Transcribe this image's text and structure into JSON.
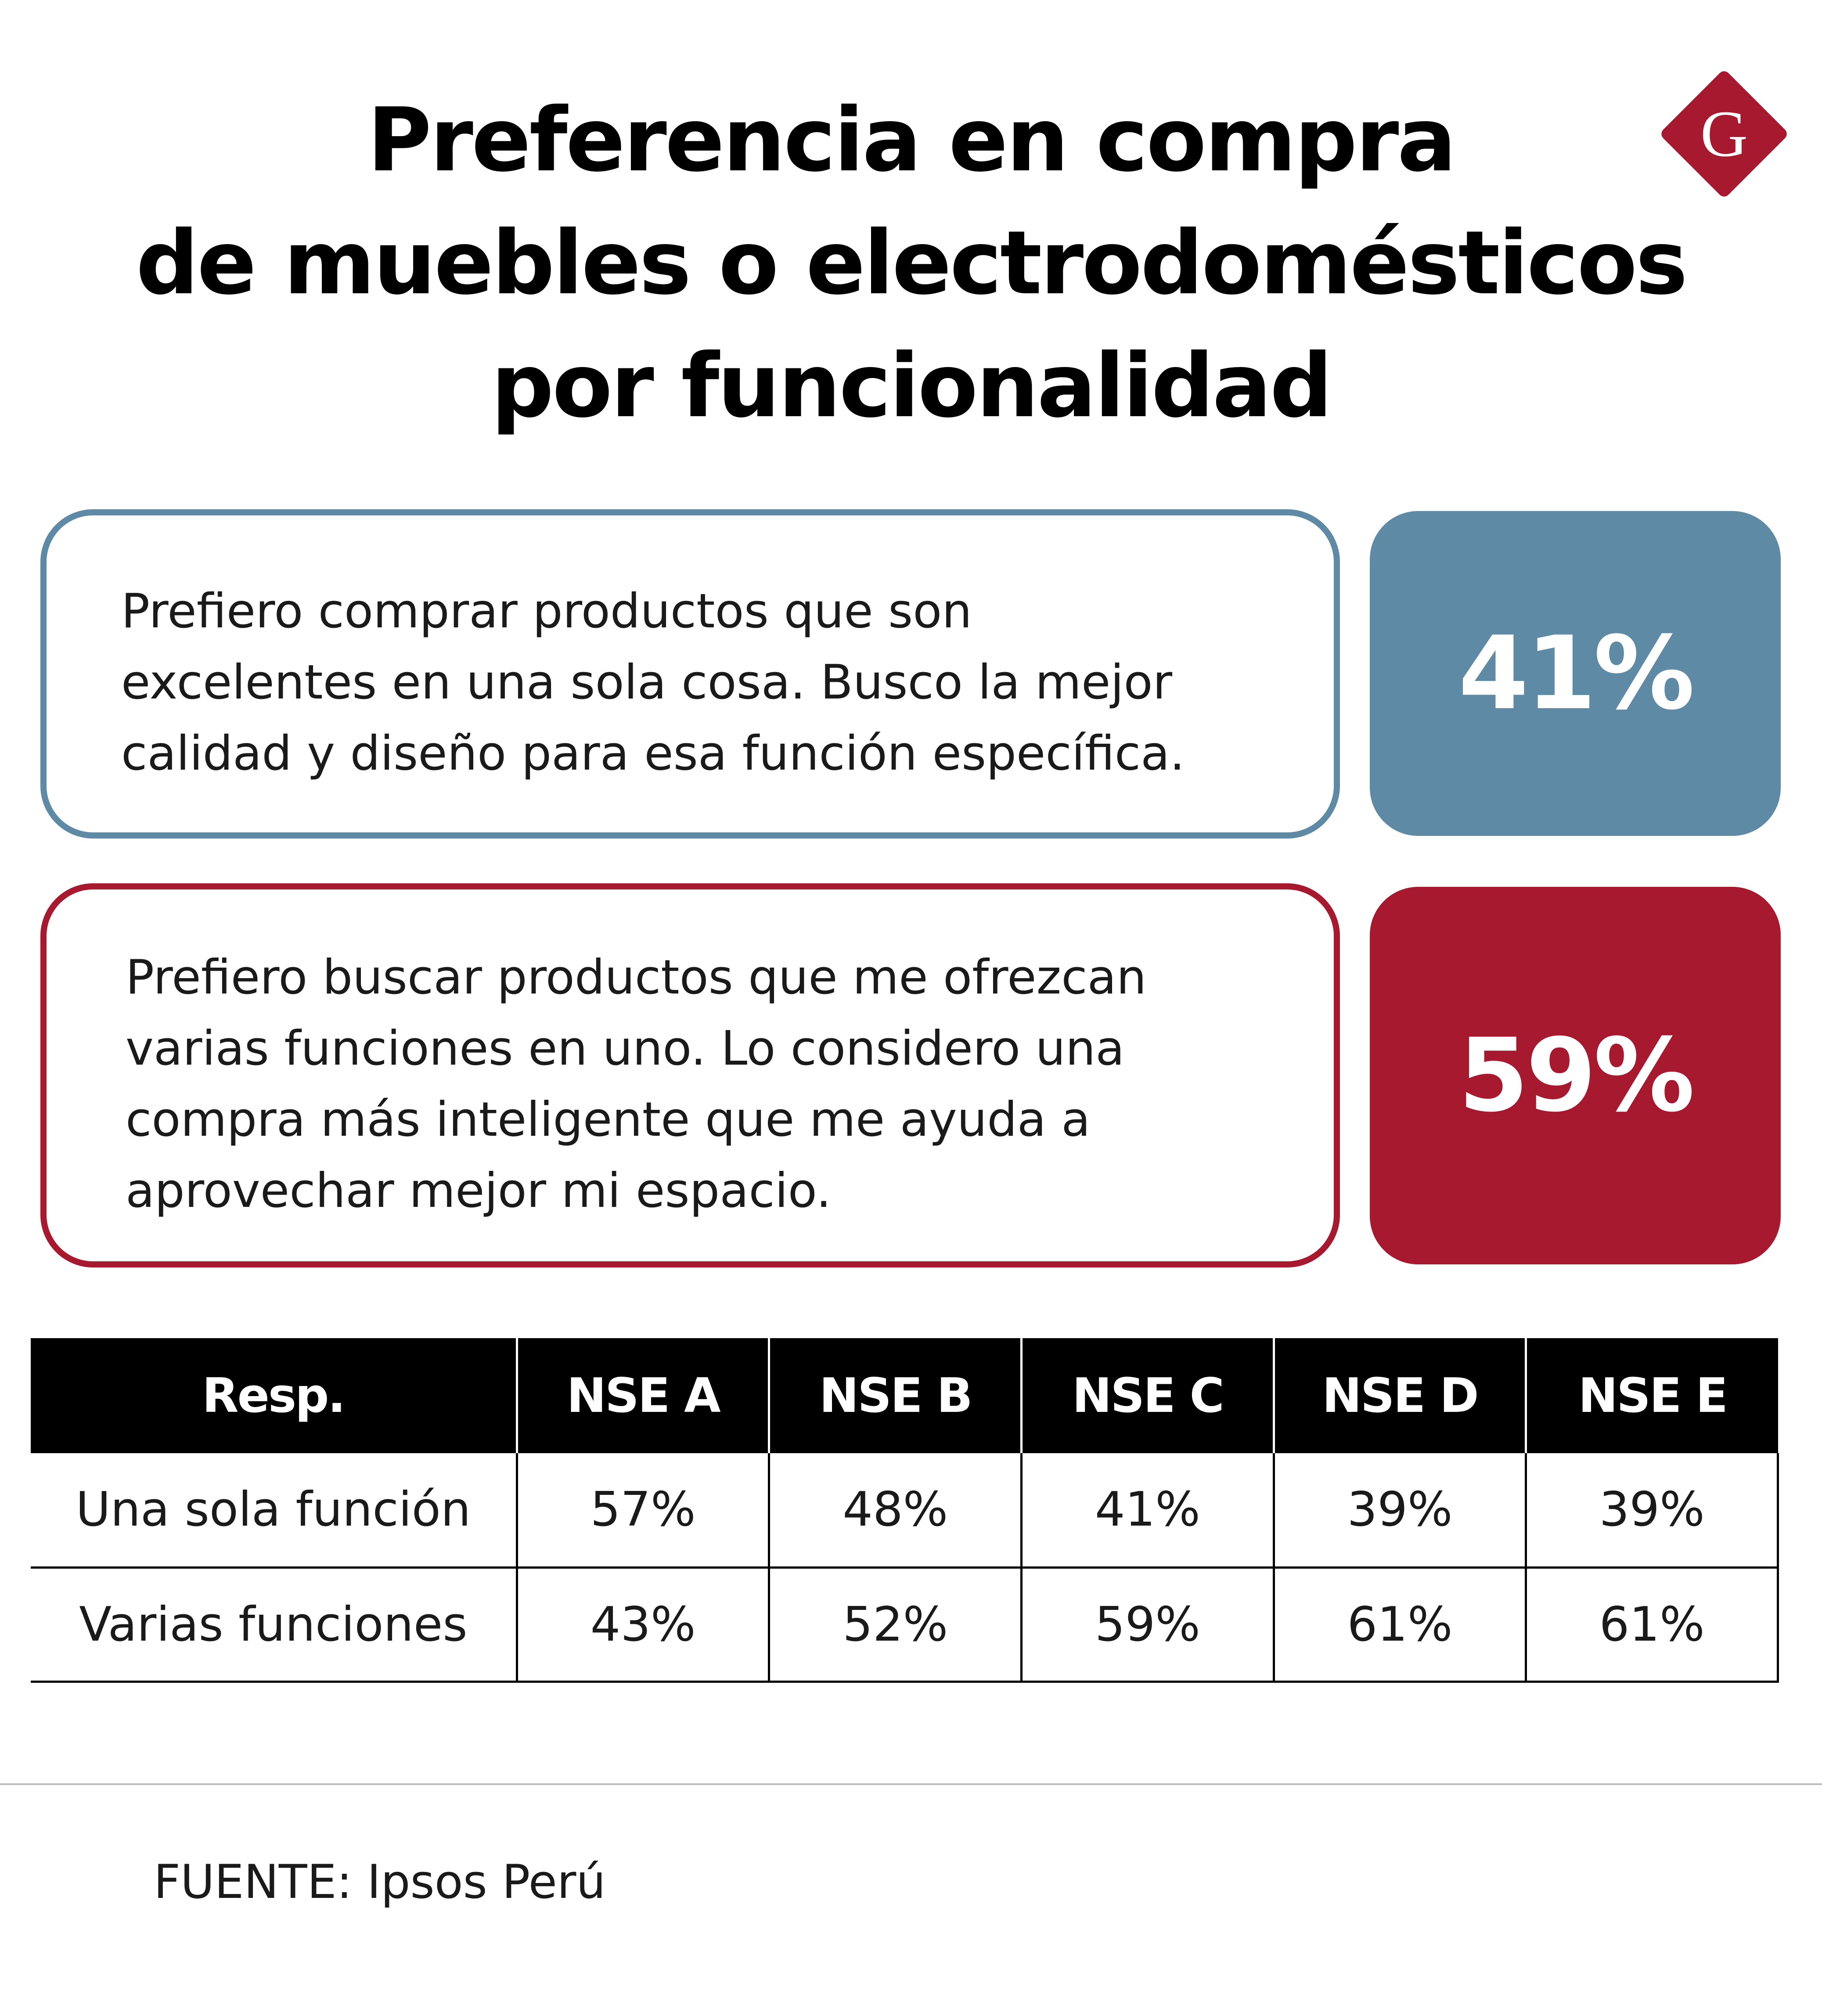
{
  "title": {
    "line1": "Preferencia en compra",
    "line2": "de muebles o electrodomésticos",
    "line3": "por funcionalidad"
  },
  "logo": {
    "letter": "G",
    "color": "#a6192e"
  },
  "colors": {
    "blue": "#5e8aa6",
    "red": "#a6192e"
  },
  "statements": [
    {
      "lines": [
        "Prefiero comprar productos que son",
        "excelentes en una sola cosa. Busco la mejor",
        "calidad y diseño para esa función específica."
      ],
      "percent": "41%"
    },
    {
      "lines": [
        "Prefiero buscar productos que me ofrezcan",
        "varias funciones en uno. Lo considero una",
        "compra más inteligente que me ayuda a",
        "aprovechar mejor mi espacio."
      ],
      "percent": "59%"
    }
  ],
  "chart_data": {
    "type": "table",
    "columns": [
      "Resp.",
      "NSE A",
      "NSE B",
      "NSE C",
      "NSE D",
      "NSE E"
    ],
    "rows": [
      [
        "Una sola función",
        "57%",
        "48%",
        "41%",
        "39%",
        "39%"
      ],
      [
        "Varias funciones",
        "43%",
        "52%",
        "59%",
        "61%",
        "61%"
      ]
    ],
    "summary": [
      {
        "label": "Una sola función",
        "value": 41
      },
      {
        "label": "Varias funciones",
        "value": 59
      }
    ]
  },
  "source": "FUENTE: Ipsos Perú"
}
